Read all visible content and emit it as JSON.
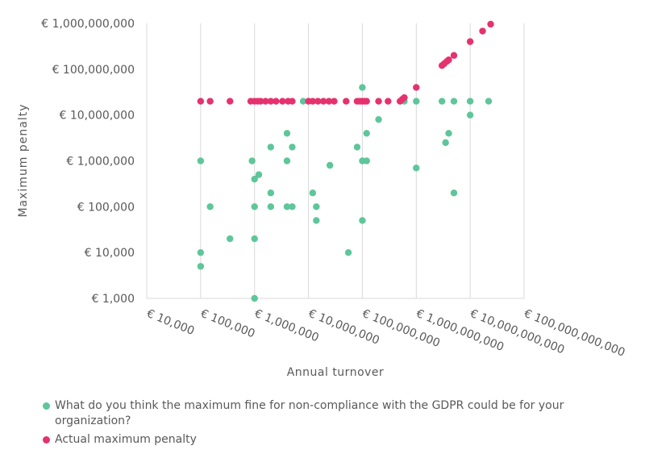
{
  "chart_data": {
    "type": "scatter",
    "xlabel": "Annual turnover",
    "ylabel": "Maximum penalty",
    "x_scale": "log",
    "y_scale": "log",
    "xlim": [
      10000,
      100000000000
    ],
    "ylim": [
      1000,
      1000000000
    ],
    "x_ticks": [
      10000,
      100000,
      1000000,
      10000000,
      100000000,
      1000000000,
      10000000000,
      100000000000
    ],
    "x_tick_labels": [
      "€ 10,000",
      "€ 100,000",
      "€ 1,000,000",
      "€ 10,000,000",
      "€ 100,000,000",
      "€ 1,000,000,000",
      "€ 10,000,000,000",
      "€ 100,000,000,000"
    ],
    "y_ticks": [
      1000,
      10000,
      100000,
      1000000,
      10000000,
      100000000,
      1000000000
    ],
    "y_tick_labels": [
      "€ 1,000",
      "€ 10,000",
      "€ 100,000",
      "€ 1,000,000",
      "€ 10,000,000",
      "€ 100,000,000",
      "€ 1,000,000,000"
    ],
    "grid": "vertical",
    "legend_position": "bottom",
    "series": [
      {
        "name": "What do you think the maximum fine for non-compliance with the GDPR could be for your organization?",
        "color": "#5ec69a",
        "points": [
          [
            100000,
            1000000
          ],
          [
            100000,
            10000
          ],
          [
            100000,
            5000
          ],
          [
            150000,
            100000
          ],
          [
            350000,
            20000
          ],
          [
            900000,
            1000000
          ],
          [
            1000000,
            400000
          ],
          [
            1000000,
            100000
          ],
          [
            1000000,
            20000
          ],
          [
            1000000,
            1000
          ],
          [
            1200000,
            500000
          ],
          [
            2000000,
            2000000
          ],
          [
            2000000,
            200000
          ],
          [
            2000000,
            100000
          ],
          [
            4000000,
            4000000
          ],
          [
            4000000,
            1000000
          ],
          [
            4000000,
            100000
          ],
          [
            5000000,
            2000000
          ],
          [
            5000000,
            100000
          ],
          [
            8000000,
            20000000
          ],
          [
            12000000,
            200000
          ],
          [
            14000000,
            100000
          ],
          [
            14000000,
            50000
          ],
          [
            25000000,
            800000
          ],
          [
            55000000,
            10000
          ],
          [
            80000000,
            2000000
          ],
          [
            100000000,
            40000000
          ],
          [
            100000000,
            1000000
          ],
          [
            100000000,
            50000
          ],
          [
            120000000,
            4000000
          ],
          [
            120000000,
            1000000
          ],
          [
            200000000,
            8000000
          ],
          [
            600000000,
            20000000
          ],
          [
            1000000000,
            20000000
          ],
          [
            1000000000,
            700000
          ],
          [
            3000000000,
            20000000
          ],
          [
            3500000000,
            2500000
          ],
          [
            4000000000,
            4000000
          ],
          [
            5000000000,
            20000000
          ],
          [
            5000000000,
            200000
          ],
          [
            10000000000,
            20000000
          ],
          [
            10000000000,
            10000000
          ],
          [
            22000000000,
            20000000
          ]
        ]
      },
      {
        "name": "Actual maximum penalty",
        "color": "#e5326e",
        "points": [
          [
            100000,
            20000000
          ],
          [
            150000,
            20000000
          ],
          [
            350000,
            20000000
          ],
          [
            850000,
            20000000
          ],
          [
            1000000,
            20000000
          ],
          [
            1150000,
            20000000
          ],
          [
            1300000,
            20000000
          ],
          [
            1600000,
            20000000
          ],
          [
            2000000,
            20000000
          ],
          [
            2500000,
            20000000
          ],
          [
            3300000,
            20000000
          ],
          [
            4200000,
            20000000
          ],
          [
            5000000,
            20000000
          ],
          [
            10000000,
            20000000
          ],
          [
            12000000,
            20000000
          ],
          [
            15000000,
            20000000
          ],
          [
            19000000,
            20000000
          ],
          [
            24000000,
            20000000
          ],
          [
            30000000,
            20000000
          ],
          [
            50000000,
            20000000
          ],
          [
            80000000,
            20000000
          ],
          [
            90000000,
            20000000
          ],
          [
            100000000,
            20000000
          ],
          [
            110000000,
            20000000
          ],
          [
            120000000,
            20000000
          ],
          [
            200000000,
            20000000
          ],
          [
            300000000,
            20000000
          ],
          [
            500000000,
            20000000
          ],
          [
            550000000,
            22000000
          ],
          [
            600000000,
            24000000
          ],
          [
            1000000000,
            40000000
          ],
          [
            3000000000,
            120000000
          ],
          [
            3300000000,
            132000000
          ],
          [
            3700000000,
            148000000
          ],
          [
            4000000000,
            160000000
          ],
          [
            5000000000,
            200000000
          ],
          [
            10000000000,
            400000000
          ],
          [
            17000000000,
            680000000
          ],
          [
            24000000000,
            960000000
          ]
        ]
      }
    ]
  }
}
